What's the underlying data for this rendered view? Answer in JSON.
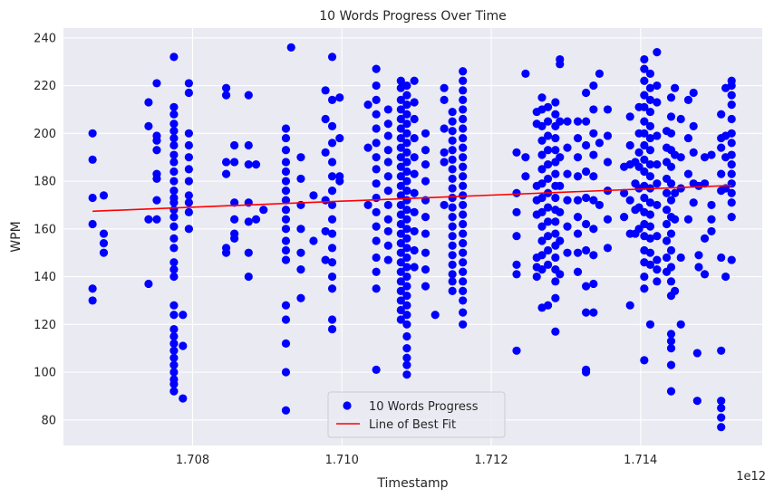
{
  "chart_data": {
    "type": "scatter",
    "title": "10 Words Progress Over Time",
    "xlabel": "Timestamp",
    "ylabel": "WPM",
    "x_offset_label": "1e12",
    "x_ticks": [
      "1.708",
      "1.710",
      "1.712",
      "1.714"
    ],
    "x_tick_values": [
      1.708,
      1.71,
      1.712,
      1.714
    ],
    "y_ticks": [
      80,
      100,
      120,
      140,
      160,
      180,
      200,
      220,
      240
    ],
    "xlim": [
      1.70627,
      1.71563
    ],
    "ylim": [
      69.3,
      244.1
    ],
    "grid": true,
    "background_color": "#EAEAF2",
    "legend": {
      "placement": "bottom-center",
      "entries": [
        "10 Words Progress",
        "Line of Best Fit"
      ]
    },
    "series": [
      {
        "name": "10 Words Progress",
        "style": "scatter",
        "color": "#0000FF",
        "columns": [
          [
            1.70666,
            [
              200,
              189,
              173,
              162,
              135,
              130
            ]
          ],
          [
            1.70681,
            [
              174,
              158,
              154,
              150
            ]
          ],
          [
            1.70741,
            [
              213,
              203,
              164,
              137
            ]
          ],
          [
            1.70752,
            [
              221,
              199,
              197,
              193,
              183,
              181,
              172,
              164
            ]
          ],
          [
            1.70775,
            [
              232,
              211,
              208,
              204,
              201,
              198,
              195,
              191,
              188,
              184,
              180,
              176,
              173,
              171,
              168,
              165,
              161,
              156,
              152,
              146,
              143,
              140,
              128,
              124,
              118,
              115,
              112,
              109,
              106,
              103,
              100,
              97,
              95,
              92
            ]
          ],
          [
            1.70787,
            [
              124,
              111,
              89
            ]
          ],
          [
            1.70795,
            [
              221,
              217,
              200,
              195,
              190,
              185,
              180,
              174,
              171,
              167,
              160
            ]
          ],
          [
            1.70845,
            [
              219,
              216,
              188,
              183,
              152,
              150
            ]
          ],
          [
            1.70856,
            [
              195,
              188,
              171,
              164,
              158,
              156
            ]
          ],
          [
            1.70875,
            [
              216,
              195,
              187,
              171,
              163,
              150,
              140
            ]
          ],
          [
            1.70885,
            [
              187,
              164
            ]
          ],
          [
            1.70895,
            [
              168
            ]
          ],
          [
            1.70925,
            [
              202,
              198,
              193,
              188,
              184,
              180,
              176,
              172,
              168,
              164,
              160,
              155,
              151,
              147,
              128,
              122,
              112,
              100,
              84
            ]
          ],
          [
            1.70932,
            [
              236
            ]
          ],
          [
            1.70945,
            [
              190,
              181,
              170,
              160,
              150,
              143,
              131
            ]
          ],
          [
            1.70962,
            [
              174,
              155
            ]
          ],
          [
            1.70978,
            [
              218,
              206,
              192,
              172,
              159,
              147
            ]
          ],
          [
            1.70987,
            [
              232,
              214,
              203,
              196,
              188,
              182,
              176,
              170,
              164,
              158,
              152,
              146,
              140,
              135,
              122,
              118
            ]
          ],
          [
            1.70997,
            [
              215,
              198,
              182,
              180
            ]
          ],
          [
            1.71035,
            [
              212,
              194,
              170
            ]
          ],
          [
            1.71046,
            [
              227,
              220,
              214,
              208,
              202,
              196,
              190,
              185,
              179,
              173,
              167,
              161,
              155,
              148,
              142,
              135,
              101
            ]
          ],
          [
            1.71062,
            [
              210,
              204,
              199,
              193,
              188,
              182,
              176,
              170,
              164,
              159,
              153,
              147
            ]
          ],
          [
            1.71079,
            [
              222,
              219,
              214,
              210,
              206,
              202,
              198,
              194,
              190,
              186,
              182,
              178,
              174,
              170,
              166,
              162,
              158,
              154,
              150,
              146,
              142,
              138,
              134,
              130,
              126,
              122
            ]
          ],
          [
            1.71087,
            [
              220,
              216,
              212,
              208,
              204,
              200,
              196,
              192,
              188,
              184,
              180,
              176,
              172,
              168,
              164,
              160,
              156,
              152,
              148,
              144,
              140,
              136,
              132,
              128,
              124,
              120,
              115,
              110,
              106,
              103,
              99
            ]
          ],
          [
            1.71097,
            [
              222,
              213,
              206,
              198,
              190,
              183,
              175,
              167,
              159,
              151,
              144
            ]
          ],
          [
            1.71112,
            [
              200,
              193,
              187,
              180,
              172,
              165,
              158,
              150,
              143,
              136
            ]
          ],
          [
            1.71125,
            [
              124
            ]
          ],
          [
            1.71137,
            [
              219,
              214,
              202,
              192,
              188,
              170
            ]
          ],
          [
            1.71148,
            [
              209,
              205,
              201,
              197,
              193,
              189,
              185,
              181,
              177,
              173,
              169,
              165,
              161,
              157,
              153,
              149,
              145,
              141,
              138,
              134
            ]
          ],
          [
            1.71162,
            [
              226,
              222,
              218,
              214,
              210,
              206,
              202,
              198,
              194,
              190,
              186,
              182,
              178,
              174,
              170,
              166,
              162,
              158,
              154,
              150,
              146,
              142,
              138,
              134,
              130,
              125,
              120
            ]
          ],
          [
            1.71234,
            [
              192,
              175,
              167,
              157,
              145,
              141,
              109
            ]
          ],
          [
            1.71246,
            [
              225,
              190,
              182
            ]
          ],
          [
            1.71261,
            [
              209,
              204,
              178,
              172,
              166,
              148,
              144,
              140
            ]
          ],
          [
            1.71268,
            [
              215,
              210,
              203,
              197,
              191,
              185,
              179,
              173,
              167,
              161,
              155,
              149,
              143,
              127
            ]
          ],
          [
            1.71276,
            [
              211,
              205,
              199,
              193,
              187,
              181,
              175,
              169,
              163,
              157,
              151,
              145,
              128
            ]
          ],
          [
            1.71286,
            [
              213,
              208,
              203,
              198,
              193,
              188,
              183,
              178,
              173,
              168,
              163,
              158,
              153,
              148,
              143,
              138,
              131,
              117
            ]
          ],
          [
            1.71292,
            [
              231,
              229,
              205,
              190,
              178,
              167,
              155,
              141
            ]
          ],
          [
            1.71302,
            [
              205,
              194,
              183,
              172,
              161,
              150
            ]
          ],
          [
            1.71316,
            [
              205,
              198,
              190,
              182,
              172,
              165,
              158,
              150,
              142
            ]
          ],
          [
            1.71327,
            [
              217,
              205,
              195,
              184,
              173,
              162,
              151,
              136,
              125,
              101,
              100
            ]
          ],
          [
            1.71337,
            [
              220,
              210,
              200,
              191,
              182,
              172,
              160,
              149,
              137,
              125
            ]
          ],
          [
            1.71345,
            [
              225,
              196,
              170
            ]
          ],
          [
            1.71356,
            [
              210,
              199,
              188,
              176,
              164,
              152
            ]
          ],
          [
            1.71378,
            [
              186,
              175,
              165
            ]
          ],
          [
            1.71386,
            [
              207,
              195,
              187,
              172,
              158,
              128
            ]
          ],
          [
            1.71393,
            [
              188,
              179,
              168,
              158
            ]
          ],
          [
            1.71398,
            [
              211,
              200,
              192,
              186,
              177,
              169,
              160
            ]
          ],
          [
            1.71405,
            [
              231,
              227,
              222,
              216,
              211,
              205,
              200,
              195,
              189,
              184,
              178,
              173,
              167,
              162,
              157,
              151,
              146,
              140,
              135,
              105
            ]
          ],
          [
            1.71413,
            [
              225,
              219,
              214,
              209,
              203,
              198,
              193,
              187,
              182,
              177,
              171,
              166,
              161,
              156,
              150,
              145,
              120
            ]
          ],
          [
            1.71422,
            [
              234,
              220,
              213,
              199,
              187,
              179,
              170,
              157,
              147,
              143,
              138
            ]
          ],
          [
            1.71435,
            [
              201,
              194,
              188,
              181,
              175,
              168,
              162,
              155,
              148,
              142
            ]
          ],
          [
            1.71441,
            [
              215,
              207,
              200,
              193,
              186,
              179,
              172,
              165,
              158,
              151,
              144,
              138,
              132,
              116,
              113,
              110,
              103,
              92
            ]
          ],
          [
            1.71446,
            [
              219,
              191,
              175,
              164,
              134
            ]
          ],
          [
            1.71454,
            [
              206,
              190,
              177,
              148,
              120
            ]
          ],
          [
            1.71464,
            [
              214,
              198,
              183,
              164
            ]
          ],
          [
            1.71471,
            [
              217,
              203,
              192,
              179,
              171
            ]
          ],
          [
            1.71476,
            [
              108,
              88
            ]
          ],
          [
            1.71478,
            [
              178,
              149,
              144
            ]
          ],
          [
            1.71486,
            [
              190,
              179,
              156,
              141
            ]
          ],
          [
            1.71495,
            [
              191,
              170,
              164,
              159
            ]
          ],
          [
            1.71508,
            [
              208,
              198,
              194,
              183,
              176,
              148,
              109,
              88,
              85,
              81,
              77
            ]
          ],
          [
            1.71514,
            [
              219,
              199,
              190,
              177,
              140
            ]
          ],
          [
            1.71522,
            [
              222,
              220,
              216,
              212,
              206,
              200,
              196,
              191,
              187,
              183,
              179,
              175,
              171,
              165,
              147
            ]
          ]
        ]
      },
      {
        "name": "Line of Best Fit",
        "style": "line",
        "color": "#FF0000",
        "x": [
          1.70666,
          1.71522
        ],
        "y": [
          167.4,
          178.2
        ]
      }
    ]
  }
}
